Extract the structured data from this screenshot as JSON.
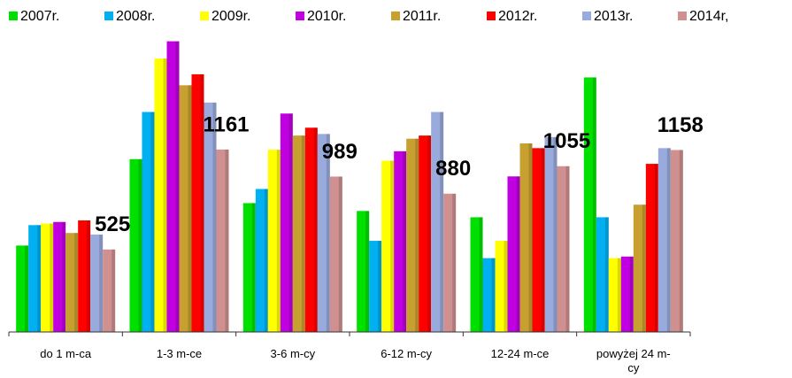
{
  "chart_data": {
    "type": "bar",
    "categories": [
      "do 1 m-ca",
      "1-3 m-ce",
      "3-6 m-cy",
      "6-12 m-cy",
      "12-24 m-ce",
      "powyżej 24 m-cy"
    ],
    "series": [
      {
        "name": "2007r.",
        "color": "#00e000",
        "values": [
          550,
          1100,
          820,
          770,
          730,
          1620
        ]
      },
      {
        "name": "2008r.",
        "color": "#00b0f0",
        "values": [
          680,
          1400,
          910,
          580,
          470,
          730
        ]
      },
      {
        "name": "2009r.",
        "color": "#ffff00",
        "values": [
          690,
          1740,
          1160,
          1090,
          580,
          470
        ]
      },
      {
        "name": "2010r.",
        "color": "#c000e0",
        "values": [
          700,
          1850,
          1390,
          1150,
          990,
          480
        ]
      },
      {
        "name": "2011r.",
        "color": "#c8a030",
        "values": [
          630,
          1570,
          1250,
          1230,
          1200,
          810
        ]
      },
      {
        "name": "2012r.",
        "color": "#ff0000",
        "values": [
          710,
          1640,
          1300,
          1250,
          1170,
          1070
        ]
      },
      {
        "name": "2013r.",
        "color": "#99aadd",
        "values": [
          620,
          1460,
          1260,
          1400,
          1240,
          1170
        ]
      },
      {
        "name": "2014r,",
        "color": "#d09090",
        "values": [
          525,
          1161,
          989,
          880,
          1055,
          1158
        ]
      }
    ],
    "ylim": [
      0,
      2000
    ]
  }
}
